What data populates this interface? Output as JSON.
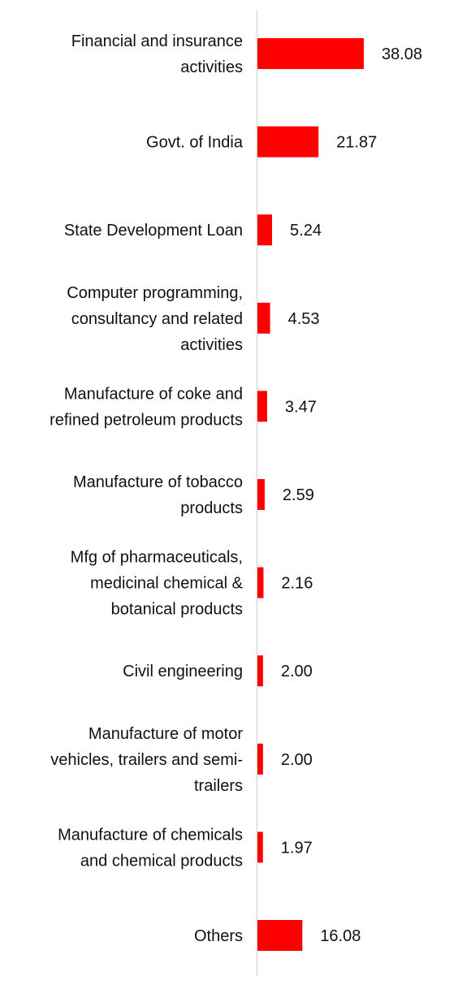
{
  "chart_data": {
    "type": "bar",
    "orientation": "horizontal",
    "categories": [
      [
        "Financial and insurance",
        "activities"
      ],
      [
        "Govt. of India"
      ],
      [
        "State Development Loan"
      ],
      [
        "Computer programming,",
        "consultancy and related",
        "activities"
      ],
      [
        "Manufacture of coke and",
        "refined petroleum products"
      ],
      [
        "Manufacture of tobacco",
        "products"
      ],
      [
        "Mfg of pharmaceuticals,",
        "medicinal chemical &",
        "botanical products"
      ],
      [
        "Civil engineering"
      ],
      [
        "Manufacture of motor",
        "vehicles, trailers and semi-",
        "trailers"
      ],
      [
        "Manufacture of chemicals",
        "and chemical products"
      ],
      [
        "Others"
      ]
    ],
    "values": [
      38.08,
      21.87,
      5.24,
      4.53,
      3.47,
      2.59,
      2.16,
      2.0,
      2.0,
      1.97,
      16.08
    ],
    "value_labels": [
      "38.08",
      "21.87",
      "5.24",
      "4.53",
      "3.47",
      "2.59",
      "2.16",
      "2.00",
      "2.00",
      "1.97",
      "16.08"
    ],
    "xlim": [
      0,
      38.08
    ],
    "bar_color": "#ff0000",
    "axis_color": "#d9d9d9",
    "grid": false,
    "legend": "none"
  }
}
